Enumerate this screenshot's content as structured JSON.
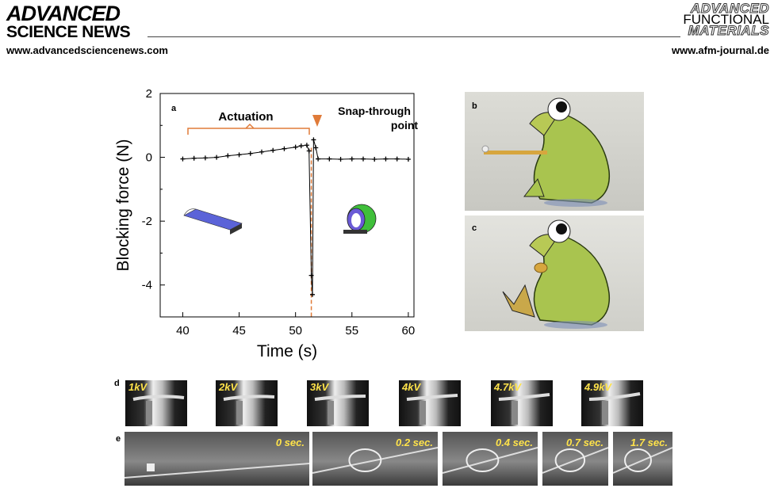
{
  "header": {
    "publisher_line1": "ADVANCED",
    "publisher_line2": "SCIENCE NEWS",
    "publisher_url": "www.advancedsciencenews.com",
    "journal_line1": "ADVANCED",
    "journal_line2": "FUNCTIONAL",
    "journal_line3": "MATERIALS",
    "journal_url": "www.afm-journal.de"
  },
  "panels": {
    "a": "a",
    "b": "b",
    "c": "c",
    "d": "d",
    "e": "e"
  },
  "panel_d_labels": [
    "1kV",
    "2kV",
    "3kV",
    "4kV",
    "4.7kV",
    "4.9kV"
  ],
  "panel_e_labels": [
    "0 sec.",
    "0.2 sec.",
    "0.4 sec.",
    "0.7 sec.",
    "1.7 sec."
  ],
  "chart_data": {
    "type": "scatter",
    "xlabel": "Time (s)",
    "ylabel": "Blocking force (N)",
    "xlim": [
      38,
      60.5
    ],
    "ylim": [
      -5,
      2
    ],
    "xticks": [
      40,
      45,
      50,
      55,
      60
    ],
    "yticks": [
      2,
      0,
      -2,
      -4
    ],
    "annotations": {
      "actuation": "Actuation",
      "snap_line1": "Snap-through",
      "snap_line2": "point"
    },
    "snap_x": 51.4,
    "series": [
      {
        "x": [
          40,
          41,
          42,
          43,
          44,
          45,
          46,
          47,
          48,
          49,
          50,
          50.5,
          51,
          51.2,
          51.4,
          51.5,
          51.6,
          51.8,
          52,
          53,
          54,
          55,
          56,
          57,
          58,
          59,
          60
        ],
        "y": [
          -0.05,
          -0.03,
          -0.02,
          0.0,
          0.05,
          0.08,
          0.12,
          0.17,
          0.22,
          0.27,
          0.32,
          0.36,
          0.38,
          0.2,
          -3.7,
          -4.3,
          0.55,
          0.3,
          -0.05,
          -0.05,
          -0.06,
          -0.05,
          -0.05,
          -0.06,
          -0.05,
          -0.05,
          -0.06
        ]
      }
    ]
  }
}
